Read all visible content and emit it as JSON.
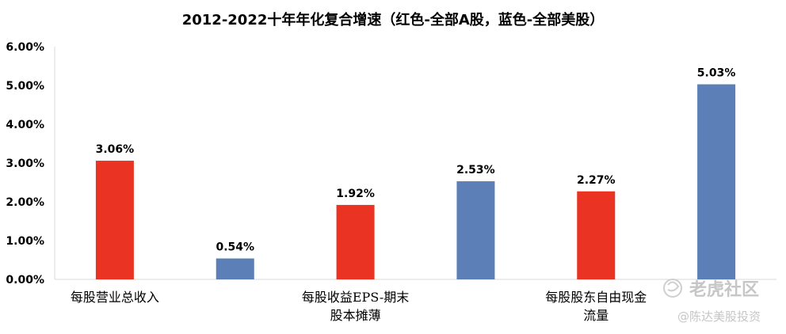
{
  "chart_data": {
    "type": "bar",
    "title": "2012-2022十年年化复合增速（红色-全部A股，蓝色-全部美股）",
    "categories": [
      [
        "每股营业总收入"
      ],
      [
        "每股收益EPS-期末",
        "股本摊薄"
      ],
      [
        "每股股东自由现金",
        "流量"
      ]
    ],
    "series": [
      {
        "values": [
          3.06,
          1.92,
          2.27
        ],
        "color": "#ea3323"
      },
      {
        "values": [
          0.54,
          2.53,
          5.03
        ],
        "color": "#5b7fb6"
      }
    ],
    "value_labels": [
      [
        "3.06%",
        "1.92%",
        "2.27%"
      ],
      [
        "0.54%",
        "2.53%",
        "5.03%"
      ]
    ],
    "yticks": [
      "0.00%",
      "1.00%",
      "2.00%",
      "3.00%",
      "4.00%",
      "5.00%",
      "6.00%"
    ],
    "ylim": [
      0,
      6
    ],
    "grid": false
  },
  "watermark": {
    "line1": "老虎社区",
    "line2": "@陈达美股投资"
  }
}
